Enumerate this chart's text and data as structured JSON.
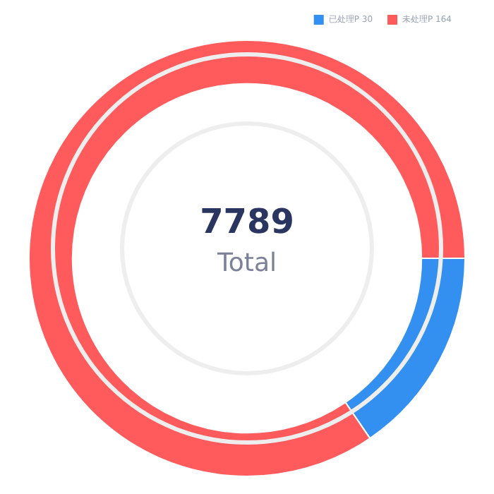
{
  "chart_data": {
    "type": "donut",
    "categories": [
      "已处理P 30",
      "未处理P 164"
    ],
    "values": [
      30,
      164
    ],
    "colors": [
      "#3390f0",
      "#ff5a5c"
    ],
    "legend": "top right",
    "annotations": [
      "7789",
      "Total"
    ]
  }
}
